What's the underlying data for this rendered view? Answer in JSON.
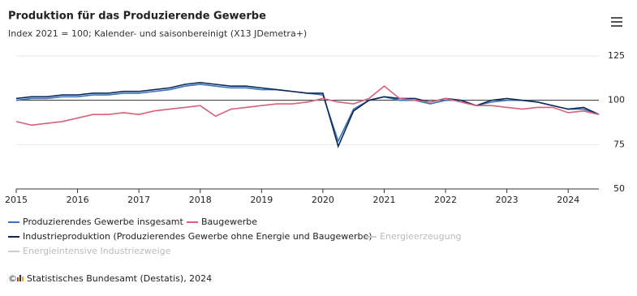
{
  "chart_data": {
    "type": "line",
    "title": "Produktion für das Produzierende Gewerbe",
    "subtitle": "Index 2021 = 100; Kalender- und saisonbereinigt (X13 JDemetra+)",
    "x": [
      2015,
      2015.25,
      2015.5,
      2015.75,
      2016,
      2016.25,
      2016.5,
      2016.75,
      2017,
      2017.25,
      2017.5,
      2017.75,
      2018,
      2018.25,
      2018.5,
      2018.75,
      2019,
      2019.25,
      2019.5,
      2019.75,
      2020,
      2020.25,
      2020.5,
      2020.75,
      2021,
      2021.25,
      2021.5,
      2021.75,
      2022,
      2022.25,
      2022.5,
      2022.75,
      2023,
      2023.25,
      2023.5,
      2023.75,
      2024,
      2024.25,
      2024.5
    ],
    "series": [
      {
        "name": "Produzierendes Gewerbe insgesamt",
        "color": "#3c73b4",
        "values": [
          100,
          101,
          101,
          102,
          102,
          103,
          103,
          104,
          104,
          105,
          106,
          108,
          109,
          108,
          107,
          107,
          106,
          106,
          105,
          104,
          103,
          77,
          95,
          100,
          102,
          100,
          100,
          98,
          100,
          100,
          97,
          99,
          100,
          100,
          99,
          97,
          95,
          95,
          92
        ]
      },
      {
        "name": "Baugewerbe",
        "color": "#d9607a",
        "values": [
          88,
          86,
          87,
          88,
          90,
          92,
          92,
          93,
          92,
          94,
          95,
          96,
          97,
          91,
          95,
          96,
          97,
          98,
          98,
          99,
          101,
          99,
          98,
          101,
          108,
          101,
          100,
          99,
          101,
          99,
          97,
          97,
          96,
          95,
          96,
          96,
          93,
          94,
          92
        ]
      },
      {
        "name": "Industrieproduktion (Produzierendes Gewerbe ohne Energie und Baugewerbe)",
        "color": "#0b2a5b",
        "values": [
          101,
          102,
          102,
          103,
          103,
          104,
          104,
          105,
          105,
          106,
          107,
          109,
          110,
          109,
          108,
          108,
          107,
          106,
          105,
          104,
          104,
          74,
          94,
          100,
          102,
          101,
          101,
          99,
          101,
          100,
          97,
          100,
          101,
          100,
          99,
          97,
          95,
          96,
          92
        ]
      }
    ],
    "legend_inactive": [
      "Energieerzeugung",
      "Energieintensive Industriezweige"
    ],
    "xlim": [
      2015,
      2024.5
    ],
    "xticks": [
      2015,
      2016,
      2017,
      2018,
      2019,
      2020,
      2021,
      2022,
      2023,
      2024
    ],
    "ylim": [
      50,
      125
    ],
    "yticks": [
      50,
      75,
      100,
      125
    ],
    "reference_line": 100,
    "grid": true,
    "source": "Statistisches Bundesamt (Destatis), 2024"
  }
}
